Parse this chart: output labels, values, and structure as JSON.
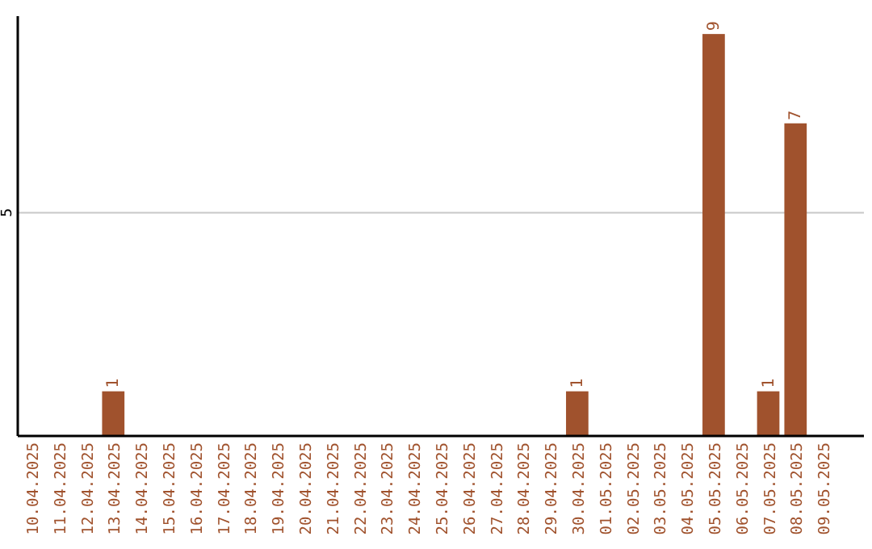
{
  "chart_data": {
    "type": "bar",
    "categories": [
      "10.04.2025",
      "11.04.2025",
      "12.04.2025",
      "13.04.2025",
      "14.04.2025",
      "15.04.2025",
      "16.04.2025",
      "17.04.2025",
      "18.04.2025",
      "19.04.2025",
      "20.04.2025",
      "21.04.2025",
      "22.04.2025",
      "23.04.2025",
      "24.04.2025",
      "25.04.2025",
      "26.04.2025",
      "27.04.2025",
      "28.04.2025",
      "29.04.2025",
      "30.04.2025",
      "01.05.2025",
      "02.05.2025",
      "03.05.2025",
      "04.05.2025",
      "05.05.2025",
      "06.05.2025",
      "07.05.2025",
      "08.05.2025",
      "09.05.2025"
    ],
    "values": [
      0,
      0,
      0,
      1,
      0,
      0,
      0,
      0,
      0,
      0,
      0,
      0,
      0,
      0,
      0,
      0,
      0,
      0,
      0,
      0,
      1,
      0,
      0,
      0,
      0,
      9,
      0,
      1,
      7,
      0
    ],
    "value_labels": [
      null,
      null,
      null,
      "1",
      null,
      null,
      null,
      null,
      null,
      null,
      null,
      null,
      null,
      null,
      null,
      null,
      null,
      null,
      null,
      null,
      "1",
      null,
      null,
      null,
      null,
      "9",
      null,
      "1",
      "7",
      null
    ],
    "color": "#a0522d",
    "ylim": [
      0,
      9.4
    ],
    "yticks": [
      5
    ],
    "grid": "y"
  }
}
